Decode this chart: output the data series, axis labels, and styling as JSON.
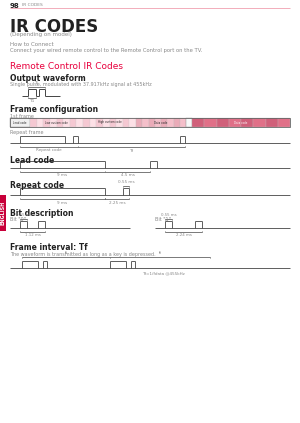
{
  "page_num": "98",
  "page_label": "IR CODES",
  "title": "IR CODES",
  "subtitle": "(Depending on model)",
  "how_to_connect_label": "How to Connect",
  "how_to_connect_text": "Connect your wired remote control to the Remote Control port on the TV.",
  "section_title": "Remote Control IR Codes",
  "section_title_color": "#e8003d",
  "output_waveform_title": "Output waveform",
  "output_waveform_desc": "Single pulse, modulated with 37.917kHz signal at 455kHz",
  "frame_config_title": "Frame configuration",
  "frame_1st": "1st frame",
  "repeat_frame_label": "Repeat frame",
  "lead_code_title": "Lead code",
  "repeat_code_title": "Repeat code",
  "bit_desc_title": "Bit description",
  "bit0_label": "Bit \"0\"",
  "bit1_label": "Bit \"1\"",
  "frame_interval_title": "Frame interval: Tf",
  "frame_interval_desc": "The waveform is transmitted as long as a key is depressed.",
  "tf_note": "Tf=1/fdata @455kHz",
  "bg_color": "#ffffff",
  "text_color": "#222222",
  "gray_color": "#888888",
  "line_color": "#444444",
  "sidebar_color": "#c8003a",
  "sidebar_text": "ENGLISH",
  "header_line_color": "#f0a0b0"
}
